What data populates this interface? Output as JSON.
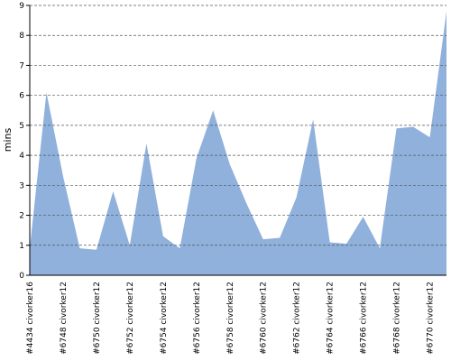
{
  "chart_data": {
    "type": "area",
    "y_label": "mins",
    "categories": [
      "#4434 civorker16",
      null,
      "#6748 civorker12",
      null,
      "#6750 civorker12",
      null,
      "#6752 civorker12",
      null,
      "#6754 civorker12",
      null,
      "#6756 civorker12",
      null,
      "#6758 civorker12",
      null,
      "#6760 civorker12",
      null,
      "#6762 civorker12",
      null,
      "#6764 civorker12",
      null,
      "#6766 civorker12",
      null,
      "#6768 civorker12",
      null,
      "#6770 civorker12",
      null
    ],
    "values": [
      0.9,
      6.1,
      3.3,
      0.9,
      0.85,
      2.8,
      1.0,
      4.4,
      1.3,
      0.9,
      3.9,
      5.5,
      3.7,
      2.4,
      1.2,
      1.25,
      2.6,
      5.2,
      1.1,
      1.05,
      1.95,
      0.9,
      4.9,
      4.95,
      4.6,
      8.8
    ],
    "color": "#8fb1dc",
    "ylim": [
      0,
      9
    ],
    "yticks": [
      0,
      1,
      2,
      3,
      4,
      5,
      6,
      7,
      8,
      9
    ],
    "grid": true
  }
}
